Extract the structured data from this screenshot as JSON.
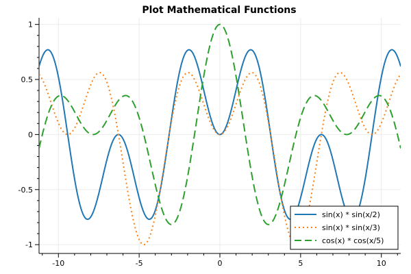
{
  "chart_data": {
    "type": "line",
    "title": "Plot Mathematical Functions",
    "xlabel": "",
    "ylabel": "",
    "xlim": [
      -11.2,
      11.2
    ],
    "ylim": [
      -1.08,
      1.06
    ],
    "xticks": [
      -10,
      -5,
      0,
      5,
      10
    ],
    "yticks": [
      -1,
      -0.5,
      0,
      0.5,
      1
    ],
    "xtick_labels": [
      "-10",
      "-5",
      "0",
      "5",
      "10"
    ],
    "ytick_labels": [
      "-1",
      "-0.5",
      "0",
      "0.5",
      "1"
    ],
    "grid": true,
    "legend_position": "bottom-right",
    "series": [
      {
        "name": "sin(x) * sin(x/2)",
        "expression": "sin(x)*sin(x/2)",
        "color": "#1f77b4",
        "style": "solid"
      },
      {
        "name": "sin(x) * sin(x/3)",
        "expression": "sin(x)*sin(x/3)",
        "color": "#ff7f0e",
        "style": "dotted"
      },
      {
        "name": "cos(x) * cos(x/5)",
        "expression": "cos(x)*cos(x/5)",
        "color": "#2ca02c",
        "style": "dashed"
      }
    ]
  }
}
